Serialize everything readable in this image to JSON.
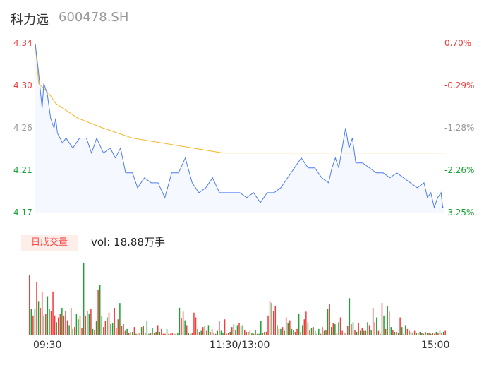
{
  "header": {
    "name": "科力远",
    "code": "600478.SH"
  },
  "chart_data": [
    {
      "type": "line",
      "ylim": [
        4.17,
        4.34
      ],
      "left_ticks": [
        "4.34",
        "4.30",
        "4.26",
        "4.21",
        "4.17"
      ],
      "right_ticks": [
        "0.70%",
        "-0.29%",
        "-1.28%",
        "-2.26%",
        "-3.25%"
      ],
      "x_ticks": [
        "09:30",
        "11:30/13:00",
        "15:00"
      ],
      "colors": {
        "price": "#4c7cf3",
        "avg": "#f5b324",
        "up": "#f23b3b",
        "down": "#1aa334",
        "flat": "#999999"
      },
      "price": [
        [
          0,
          4.34
        ],
        [
          2,
          4.31
        ],
        [
          4,
          4.275
        ],
        [
          5,
          4.3
        ],
        [
          7,
          4.29
        ],
        [
          9,
          4.265
        ],
        [
          11,
          4.255
        ],
        [
          12,
          4.265
        ],
        [
          13,
          4.25
        ],
        [
          16,
          4.24
        ],
        [
          18,
          4.245
        ],
        [
          22,
          4.235
        ],
        [
          26,
          4.245
        ],
        [
          30,
          4.245
        ],
        [
          33,
          4.23
        ],
        [
          36,
          4.245
        ],
        [
          40,
          4.23
        ],
        [
          44,
          4.235
        ],
        [
          47,
          4.225
        ],
        [
          50,
          4.235
        ],
        [
          53,
          4.21
        ],
        [
          57,
          4.21
        ],
        [
          60,
          4.195
        ],
        [
          64,
          4.205
        ],
        [
          68,
          4.2
        ],
        [
          72,
          4.2
        ],
        [
          76,
          4.185
        ],
        [
          80,
          4.21
        ],
        [
          84,
          4.21
        ],
        [
          88,
          4.225
        ],
        [
          92,
          4.2
        ],
        [
          96,
          4.19
        ],
        [
          100,
          4.195
        ],
        [
          104,
          4.205
        ],
        [
          108,
          4.19
        ],
        [
          112,
          4.19
        ],
        [
          116,
          4.19
        ],
        [
          120,
          4.19
        ],
        [
          124,
          4.185
        ],
        [
          128,
          4.19
        ],
        [
          132,
          4.18
        ],
        [
          136,
          4.19
        ],
        [
          140,
          4.19
        ],
        [
          144,
          4.195
        ],
        [
          148,
          4.205
        ],
        [
          152,
          4.215
        ],
        [
          156,
          4.225
        ],
        [
          160,
          4.215
        ],
        [
          164,
          4.215
        ],
        [
          168,
          4.205
        ],
        [
          172,
          4.2
        ],
        [
          174,
          4.215
        ],
        [
          176,
          4.225
        ],
        [
          178,
          4.215
        ],
        [
          180,
          4.235
        ],
        [
          182,
          4.255
        ],
        [
          184,
          4.235
        ],
        [
          186,
          4.245
        ],
        [
          188,
          4.22
        ],
        [
          192,
          4.22
        ],
        [
          196,
          4.215
        ],
        [
          200,
          4.21
        ],
        [
          204,
          4.21
        ],
        [
          208,
          4.205
        ],
        [
          212,
          4.21
        ],
        [
          216,
          4.205
        ],
        [
          220,
          4.2
        ],
        [
          224,
          4.195
        ],
        [
          228,
          4.2
        ],
        [
          230,
          4.185
        ],
        [
          232,
          4.19
        ],
        [
          234,
          4.175
        ],
        [
          236,
          4.185
        ],
        [
          238,
          4.19
        ],
        [
          239,
          4.175
        ],
        [
          240,
          4.175
        ]
      ],
      "avg": [
        [
          0,
          4.34
        ],
        [
          2,
          4.3
        ],
        [
          8,
          4.29
        ],
        [
          12,
          4.28
        ],
        [
          25,
          4.265
        ],
        [
          40,
          4.255
        ],
        [
          57,
          4.245
        ],
        [
          110,
          4.23
        ],
        [
          240,
          4.23
        ]
      ]
    },
    {
      "type": "bar",
      "label": "日成交量",
      "vol_text": "vol: 18.88万手",
      "volume": [
        62,
        27,
        20,
        27,
        55,
        35,
        28,
        45,
        20,
        22,
        40,
        27,
        25,
        45,
        20,
        13,
        18,
        22,
        28,
        20,
        25,
        15,
        10,
        28,
        6,
        8,
        22,
        16,
        20,
        7,
        75,
        20,
        25,
        22,
        27,
        6,
        5,
        14,
        47,
        52,
        20,
        8,
        14,
        18,
        23,
        11,
        12,
        28,
        7,
        16,
        33,
        9,
        11,
        4,
        6,
        2,
        3,
        3,
        8,
        1,
        2,
        2,
        8,
        9,
        2,
        14,
        1,
        2,
        7,
        2,
        3,
        10,
        3,
        6,
        1,
        1,
        6,
        1,
        1,
        2,
        1,
        1,
        2,
        28,
        17,
        24,
        15,
        10,
        2,
        1,
        2,
        23,
        18,
        6,
        3,
        4,
        8,
        9,
        4,
        10,
        3,
        6,
        2,
        1,
        4,
        14,
        4,
        2,
        16,
        1,
        2,
        3,
        8,
        11,
        5,
        10,
        12,
        9,
        10,
        5,
        3,
        3,
        4,
        2,
        1,
        5,
        1,
        1,
        14,
        2,
        3,
        3,
        20,
        35,
        33,
        25,
        30,
        10,
        6,
        6,
        8,
        4,
        18,
        12,
        15,
        6,
        5,
        3,
        6,
        22,
        3,
        10,
        16,
        24,
        13,
        5,
        7,
        8,
        4,
        1,
        6,
        1,
        8,
        4,
        5,
        27,
        32,
        8,
        12,
        11,
        2,
        13,
        18,
        4,
        2,
        2,
        9,
        38,
        11,
        13,
        5,
        3,
        12,
        4,
        7,
        4,
        4,
        13,
        10,
        5,
        28,
        13,
        18,
        4,
        1,
        33,
        20,
        6,
        30,
        24,
        8,
        5,
        3,
        3,
        2,
        18,
        8,
        1,
        10,
        6,
        4,
        3,
        2,
        4,
        2,
        2,
        3,
        2,
        1,
        3,
        2,
        2,
        1,
        2,
        1,
        3,
        2,
        4,
        2,
        3,
        4
      ],
      "dir": "+-+-+-++-+--+++-++-+++-+-+--++-++-+-+-+--++-+--+++-+++-+--+-++-++--+-+-+-+++-+++-+--++-+--+++-+-+-+-++-+-+--+++-+-+-+--++-+-+-+--+-+++-++-+-+-+-+--++-+-++-+-+-+-++-+-+-+-+-+++-+-+-+-+-+-+-+-++-+-+-+-+-+-+-+-+-+-+-+-+-+-+-+-++-+-+-+-+-+-"
    }
  ]
}
